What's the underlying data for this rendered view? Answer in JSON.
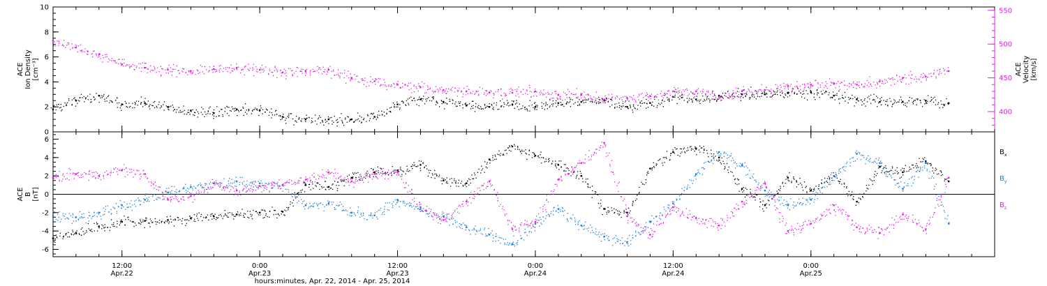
{
  "colors": {
    "black": "#000000",
    "magenta": "#e020e0",
    "blue": "#1a7ce0"
  },
  "chart_data": [
    {
      "type": "scatter",
      "panel": "top",
      "ylabel_left": [
        "ACE",
        "Ion Density",
        "[cm⁻³]"
      ],
      "ylabel_right": [
        "ACE",
        "Velocity",
        "[km/s]"
      ],
      "ylim_left": [
        0,
        10
      ],
      "ylim_right": [
        370,
        555
      ],
      "yticks_left": [
        "0",
        "2",
        "4",
        "6",
        "8",
        "10"
      ],
      "yticks_right": [
        "400",
        "450",
        "500",
        "550"
      ],
      "series": [
        {
          "color": "#000000",
          "axis": "left",
          "x": [
            0,
            2,
            4,
            6,
            8,
            10,
            12,
            14,
            16,
            18,
            20,
            22,
            24,
            26,
            28,
            30,
            32,
            34,
            36,
            38,
            40,
            42,
            44,
            46,
            48,
            50,
            52,
            54,
            56,
            58,
            60,
            62,
            64,
            66,
            68,
            70,
            72,
            74,
            76,
            78
          ],
          "y": [
            1.8,
            2.5,
            2.9,
            2.2,
            2.3,
            2.0,
            1.7,
            1.5,
            1.8,
            1.7,
            1.2,
            1.0,
            1.0,
            1.0,
            1.2,
            2.2,
            2.6,
            2.4,
            2.1,
            2.0,
            2.2,
            2.0,
            2.3,
            2.4,
            2.5,
            2.0,
            2.3,
            2.8,
            2.6,
            2.9,
            3.0,
            3.0,
            3.1,
            3.2,
            2.9,
            2.6,
            2.4,
            2.4,
            2.5,
            2.3
          ]
        },
        {
          "color": "#e020e0",
          "axis": "right",
          "x": [
            0,
            2,
            4,
            6,
            8,
            10,
            12,
            14,
            16,
            18,
            20,
            22,
            24,
            26,
            28,
            30,
            32,
            34,
            36,
            38,
            40,
            42,
            44,
            46,
            48,
            50,
            52,
            54,
            56,
            58,
            60,
            62,
            64,
            66,
            68,
            70,
            72,
            74,
            76,
            78
          ],
          "y": [
            505,
            495,
            485,
            470,
            465,
            462,
            460,
            463,
            465,
            462,
            458,
            460,
            462,
            450,
            445,
            440,
            436,
            432,
            430,
            428,
            428,
            430,
            425,
            425,
            418,
            420,
            423,
            430,
            430,
            422,
            430,
            432,
            438,
            440,
            441,
            440,
            445,
            450,
            452,
            460
          ]
        }
      ]
    },
    {
      "type": "scatter",
      "panel": "bottom",
      "ylabel_left": [
        "ACE",
        "B",
        "[nT]"
      ],
      "ylim": [
        -6.8,
        6.8
      ],
      "yticks_left": [
        "-6",
        "-4",
        "-2",
        "0",
        "2",
        "4",
        "6"
      ],
      "legend": [
        {
          "text": "B",
          "sub": "x",
          "color": "#000000"
        },
        {
          "text": "B",
          "sub": "y",
          "color": "#1a7ce0"
        },
        {
          "text": "B",
          "sub": "z",
          "color": "#e020e0"
        }
      ],
      "series": [
        {
          "color": "#000000",
          "x": [
            0,
            2,
            4,
            6,
            8,
            10,
            12,
            14,
            16,
            18,
            20,
            22,
            24,
            26,
            28,
            30,
            32,
            34,
            36,
            38,
            40,
            42,
            44,
            46,
            48,
            50,
            52,
            54,
            56,
            58,
            60,
            62,
            64,
            66,
            68,
            70,
            72,
            74,
            76,
            78
          ],
          "y": [
            -4.8,
            -4.2,
            -3.5,
            -3.0,
            -2.9,
            -2.8,
            -2.6,
            -2.4,
            -2.2,
            -2.0,
            -1.9,
            1.0,
            0.8,
            1.8,
            2.4,
            2.6,
            3.2,
            1.5,
            1.2,
            3.8,
            5.2,
            4.2,
            3.2,
            2.0,
            -1.6,
            -2.0,
            2.8,
            4.6,
            5.0,
            4.0,
            0.6,
            -1.2,
            1.8,
            0.4,
            2.0,
            -0.8,
            3.0,
            2.4,
            3.6,
            1.4
          ]
        },
        {
          "color": "#1a7ce0",
          "x": [
            0,
            2,
            4,
            6,
            8,
            10,
            12,
            14,
            16,
            18,
            20,
            22,
            24,
            26,
            28,
            30,
            32,
            34,
            36,
            38,
            40,
            42,
            44,
            46,
            48,
            50,
            52,
            54,
            56,
            58,
            60,
            62,
            64,
            66,
            68,
            70,
            72,
            74,
            76,
            78
          ],
          "y": [
            -2.4,
            -2.5,
            -2.0,
            -1.2,
            -0.6,
            0.2,
            0.8,
            1.2,
            1.4,
            1.2,
            1.0,
            -1.2,
            -1.0,
            -2.0,
            -2.3,
            -0.6,
            -1.6,
            -2.4,
            -3.6,
            -4.4,
            -5.4,
            -3.2,
            -1.6,
            -3.4,
            -4.6,
            -5.2,
            -3.0,
            -1.0,
            2.2,
            4.6,
            3.2,
            0.4,
            -1.2,
            -0.6,
            2.0,
            4.4,
            3.4,
            0.6,
            3.4,
            -3.2
          ]
        },
        {
          "color": "#e020e0",
          "x": [
            0,
            2,
            4,
            6,
            8,
            10,
            12,
            14,
            16,
            18,
            20,
            22,
            24,
            26,
            28,
            30,
            32,
            34,
            36,
            38,
            40,
            42,
            44,
            46,
            48,
            50,
            52,
            54,
            56,
            58,
            60,
            62,
            64,
            66,
            68,
            70,
            72,
            74,
            76,
            78
          ],
          "y": [
            1.8,
            2.2,
            2.0,
            2.6,
            2.2,
            -0.6,
            -0.2,
            1.2,
            0.4,
            0.9,
            1.0,
            1.6,
            2.4,
            1.4,
            2.2,
            2.4,
            -1.4,
            -2.8,
            -0.8,
            1.4,
            -3.8,
            -3.0,
            1.6,
            3.4,
            5.6,
            -2.4,
            -4.4,
            -1.4,
            -2.6,
            -3.4,
            -0.8,
            1.2,
            -4.0,
            -3.2,
            -1.2,
            -3.6,
            -4.2,
            -2.2,
            -3.8,
            1.8
          ]
        }
      ]
    }
  ],
  "x_axis": {
    "xlim": [
      0,
      82
    ],
    "ticks": [
      {
        "x": 6,
        "time": "12:00",
        "day": "Apr.22"
      },
      {
        "x": 18,
        "time": "0:00",
        "day": "Apr.23"
      },
      {
        "x": 30,
        "time": "12:00",
        "day": "Apr.23"
      },
      {
        "x": 42,
        "time": "0:00",
        "day": "Apr.24"
      },
      {
        "x": 54,
        "time": "12:00",
        "day": "Apr.24"
      },
      {
        "x": 66,
        "time": "0:00",
        "day": "Apr.25"
      }
    ],
    "xlabel": "hours:minutes, Apr. 22, 2014 - Apr. 25, 2014"
  }
}
